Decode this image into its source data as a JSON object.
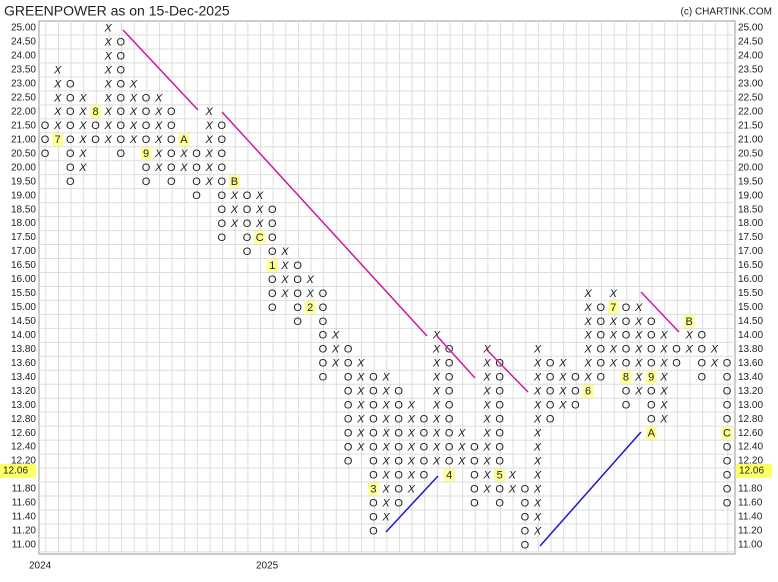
{
  "chart_data": {
    "type": "pnf",
    "title": "GREENPOWER as on 15-Dec-2025",
    "credit": "(c) CHARTINK.COM",
    "x_labels": [
      "2024",
      "2025"
    ],
    "x_color": "#2e8b2e",
    "o_color": "#e53935",
    "grid": true,
    "yticks": [
      {
        "value": 25.0,
        "label": "25.00"
      },
      {
        "value": 24.5,
        "label": "24.50"
      },
      {
        "value": 24.0,
        "label": "24.00"
      },
      {
        "value": 23.5,
        "label": "23.50"
      },
      {
        "value": 23.0,
        "label": "23.00"
      },
      {
        "value": 22.5,
        "label": "22.50"
      },
      {
        "value": 22.0,
        "label": "22.00"
      },
      {
        "value": 21.5,
        "label": "21.50"
      },
      {
        "value": 21.0,
        "label": "21.00"
      },
      {
        "value": 20.5,
        "label": "20.50"
      },
      {
        "value": 20.0,
        "label": "20.00"
      },
      {
        "value": 19.5,
        "label": "19.50"
      },
      {
        "value": 19.0,
        "label": "19.00"
      },
      {
        "value": 18.5,
        "label": "18.50"
      },
      {
        "value": 18.0,
        "label": "18.00"
      },
      {
        "value": 17.5,
        "label": "17.50"
      },
      {
        "value": 17.0,
        "label": "17.00"
      },
      {
        "value": 16.5,
        "label": "16.50"
      },
      {
        "value": 16.0,
        "label": "16.00"
      },
      {
        "value": 15.5,
        "label": "15.50"
      },
      {
        "value": 15.0,
        "label": "15.00"
      },
      {
        "value": 14.5,
        "label": "14.50"
      },
      {
        "value": 14.0,
        "label": "14.00"
      },
      {
        "value": 13.8,
        "label": "13.80"
      },
      {
        "value": 13.6,
        "label": "13.60"
      },
      {
        "value": 13.4,
        "label": "13.40"
      },
      {
        "value": 13.2,
        "label": "13.20"
      },
      {
        "value": 13.0,
        "label": "13.00"
      },
      {
        "value": 12.8,
        "label": "12.80"
      },
      {
        "value": 12.6,
        "label": "12.60"
      },
      {
        "value": 12.4,
        "label": "12.40"
      },
      {
        "value": 12.2,
        "label": "12.20"
      },
      {
        "value": 12.0,
        "label": "12.00"
      },
      {
        "value": 11.8,
        "label": "11.80"
      },
      {
        "value": 11.6,
        "label": "11.60"
      },
      {
        "value": 11.4,
        "label": "11.40"
      },
      {
        "value": 11.2,
        "label": "11.20"
      },
      {
        "value": 11.0,
        "label": "11.00"
      }
    ],
    "last_price": 12.06,
    "columns": [
      {
        "type": "O",
        "high": 21.5,
        "low": 20.5
      },
      {
        "type": "X",
        "high": 23.5,
        "low": 21.0
      },
      {
        "type": "O",
        "high": 23.0,
        "low": 19.5
      },
      {
        "type": "X",
        "high": 22.5,
        "low": 20.0
      },
      {
        "type": "O",
        "high": 22.0,
        "low": 21.0
      },
      {
        "type": "X",
        "high": 25.0,
        "low": 21.0
      },
      {
        "type": "O",
        "high": 24.5,
        "low": 20.5
      },
      {
        "type": "X",
        "high": 23.0,
        "low": 21.0
      },
      {
        "type": "O",
        "high": 22.5,
        "low": 19.5
      },
      {
        "type": "X",
        "high": 22.5,
        "low": 20.0
      },
      {
        "type": "O",
        "high": 22.0,
        "low": 19.5
      },
      {
        "type": "X",
        "high": 21.0,
        "low": 20.0
      },
      {
        "type": "O",
        "high": 20.5,
        "low": 19.0
      },
      {
        "type": "X",
        "high": 22.0,
        "low": 19.5
      },
      {
        "type": "O",
        "high": 21.5,
        "low": 17.5
      },
      {
        "type": "X",
        "high": 19.5,
        "low": 18.0
      },
      {
        "type": "O",
        "high": 19.0,
        "low": 17.0
      },
      {
        "type": "X",
        "high": 19.0,
        "low": 17.5
      },
      {
        "type": "O",
        "high": 18.5,
        "low": 15.0
      },
      {
        "type": "X",
        "high": 17.0,
        "low": 15.5
      },
      {
        "type": "O",
        "high": 16.5,
        "low": 14.5
      },
      {
        "type": "X",
        "high": 16.0,
        "low": 15.0
      },
      {
        "type": "O",
        "high": 15.5,
        "low": 13.4
      },
      {
        "type": "X",
        "high": 14.0,
        "low": 13.6
      },
      {
        "type": "O",
        "high": 13.8,
        "low": 12.2
      },
      {
        "type": "X",
        "high": 13.6,
        "low": 12.4
      },
      {
        "type": "O",
        "high": 13.4,
        "low": 11.2
      },
      {
        "type": "X",
        "high": 13.4,
        "low": 11.4
      },
      {
        "type": "O",
        "high": 13.2,
        "low": 11.6
      },
      {
        "type": "X",
        "high": 13.0,
        "low": 11.8
      },
      {
        "type": "O",
        "high": 12.8,
        "low": 12.0
      },
      {
        "type": "X",
        "high": 14.0,
        "low": 12.2
      },
      {
        "type": "O",
        "high": 13.8,
        "low": 12.0
      },
      {
        "type": "X",
        "high": 12.6,
        "low": 12.2
      },
      {
        "type": "O",
        "high": 12.4,
        "low": 11.6
      },
      {
        "type": "X",
        "high": 13.8,
        "low": 11.8
      },
      {
        "type": "O",
        "high": 13.6,
        "low": 11.6
      },
      {
        "type": "X",
        "high": 12.0,
        "low": 11.8
      },
      {
        "type": "O",
        "high": 11.8,
        "low": 11.0
      },
      {
        "type": "X",
        "high": 13.8,
        "low": 11.2
      },
      {
        "type": "O",
        "high": 13.6,
        "low": 12.8
      },
      {
        "type": "X",
        "high": 13.6,
        "low": 13.0
      },
      {
        "type": "O",
        "high": 13.4,
        "low": 13.0
      },
      {
        "type": "X",
        "high": 15.5,
        "low": 13.2
      },
      {
        "type": "O",
        "high": 15.0,
        "low": 13.4
      },
      {
        "type": "X",
        "high": 15.5,
        "low": 13.6
      },
      {
        "type": "O",
        "high": 15.0,
        "low": 13.0
      },
      {
        "type": "X",
        "high": 15.0,
        "low": 13.2
      },
      {
        "type": "O",
        "high": 14.5,
        "low": 12.6
      },
      {
        "type": "X",
        "high": 14.0,
        "low": 12.8
      },
      {
        "type": "O",
        "high": 13.8,
        "low": 13.6
      },
      {
        "type": "X",
        "high": 14.5,
        "low": 13.8
      },
      {
        "type": "O",
        "high": 14.0,
        "low": 13.4
      },
      {
        "type": "X",
        "high": 13.8,
        "low": 13.6
      },
      {
        "type": "O",
        "high": 13.6,
        "low": 11.6
      }
    ],
    "markers": [
      {
        "column": 1,
        "price": 21.0,
        "label": "7"
      },
      {
        "column": 4,
        "price": 22.0,
        "label": "8"
      },
      {
        "column": 8,
        "price": 20.5,
        "label": "9"
      },
      {
        "column": 11,
        "price": 21.0,
        "label": "A"
      },
      {
        "column": 15,
        "price": 19.5,
        "label": "B"
      },
      {
        "column": 17,
        "price": 17.5,
        "label": "C"
      },
      {
        "column": 18,
        "price": 16.5,
        "label": "1"
      },
      {
        "column": 21,
        "price": 15.0,
        "label": "2"
      },
      {
        "column": 26,
        "price": 11.8,
        "label": "3"
      },
      {
        "column": 32,
        "price": 12.0,
        "label": "4"
      },
      {
        "column": 36,
        "price": 12.0,
        "label": "5"
      },
      {
        "column": 43,
        "price": 13.2,
        "label": "6"
      },
      {
        "column": 45,
        "price": 15.0,
        "label": "7"
      },
      {
        "column": 46,
        "price": 13.4,
        "label": "8"
      },
      {
        "column": 48,
        "price": 13.4,
        "label": "9"
      },
      {
        "column": 48,
        "price": 12.6,
        "label": "A"
      },
      {
        "column": 51,
        "price": 14.5,
        "label": "B"
      },
      {
        "column": 54,
        "price": 12.6,
        "label": "C"
      }
    ]
  }
}
